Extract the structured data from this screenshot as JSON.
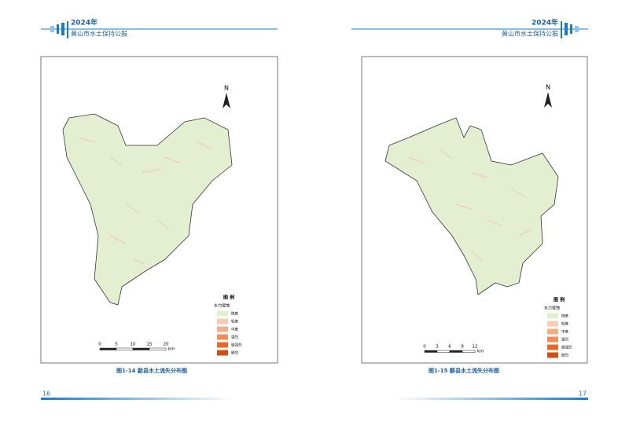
{
  "header": {
    "year": "2024年",
    "title": "黄山市水土保持公报"
  },
  "pages": [
    {
      "number": "16",
      "caption": "图1-14 歙县水土流失分布图",
      "map": {
        "north": "N",
        "legend": {
          "title": "图 例",
          "subtitle": "水力侵蚀",
          "items": [
            {
              "label": "微度",
              "color": "#e2efd3"
            },
            {
              "label": "轻度",
              "color": "#f6cdb2"
            },
            {
              "label": "中度",
              "color": "#f3ae88"
            },
            {
              "label": "强烈",
              "color": "#ee8c5a"
            },
            {
              "label": "极强烈",
              "color": "#e26a2d"
            },
            {
              "label": "剧烈",
              "color": "#cf5014"
            }
          ]
        },
        "scale": {
          "ticks": [
            0,
            5,
            10,
            15,
            20
          ],
          "unit": "km"
        }
      }
    },
    {
      "number": "17",
      "caption": "图1-15 黟县水土流失分布图",
      "map": {
        "north": "N",
        "legend": {
          "title": "图 例",
          "subtitle": "水力侵蚀",
          "items": [
            {
              "label": "微度",
              "color": "#e2efd3"
            },
            {
              "label": "轻度",
              "color": "#f6cdb2"
            },
            {
              "label": "中度",
              "color": "#f3ae88"
            },
            {
              "label": "强烈",
              "color": "#ee8c5a"
            },
            {
              "label": "极强烈",
              "color": "#e26a2d"
            },
            {
              "label": "剧烈",
              "color": "#cf5014"
            }
          ]
        },
        "scale": {
          "ticks": [
            0,
            3,
            6,
            9,
            12
          ],
          "unit": "km"
        }
      }
    }
  ]
}
